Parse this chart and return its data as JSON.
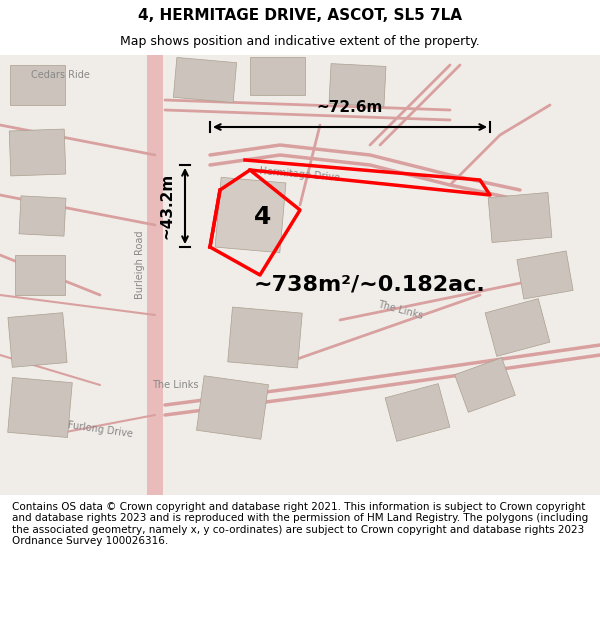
{
  "title": "4, HERMITAGE DRIVE, ASCOT, SL5 7LA",
  "subtitle": "Map shows position and indicative extent of the property.",
  "area_text": "~738m²/~0.182ac.",
  "label_number": "4",
  "dim_height": "~43.2m",
  "dim_width": "~72.6m",
  "footer": "Contains OS data © Crown copyright and database right 2021. This information is subject to Crown copyright and database rights 2023 and is reproduced with the permission of HM Land Registry. The polygons (including the associated geometry, namely x, y co-ordinates) are subject to Crown copyright and database rights 2023 Ordnance Survey 100026316.",
  "bg_color": "#f0ece8",
  "map_bg": "#f0ece8",
  "road_color": "#e8b8b8",
  "property_color": "#ff0000",
  "building_color": "#d8d0c8",
  "title_fontsize": 11,
  "subtitle_fontsize": 9,
  "footer_fontsize": 7.5
}
